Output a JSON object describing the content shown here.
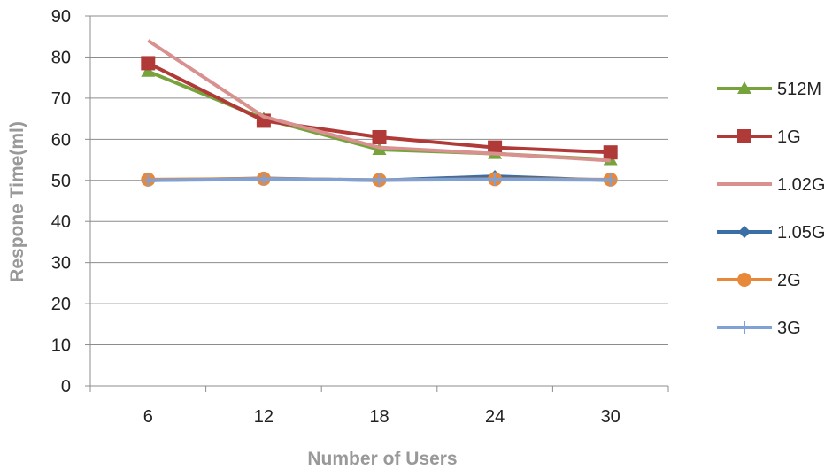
{
  "chart_data": {
    "type": "line",
    "xlabel": "Number of Users",
    "ylabel": "Respone Time(ml)",
    "categories": [
      "6",
      "12",
      "18",
      "24",
      "30"
    ],
    "ylim": [
      0,
      90
    ],
    "yticks": [
      "0",
      "10",
      "20",
      "30",
      "40",
      "50",
      "60",
      "70",
      "80",
      "90"
    ],
    "grid": "horizontal",
    "legend_position": "right",
    "series": [
      {
        "name": "512M",
        "values": [
          76.5,
          65,
          57.5,
          56.5,
          55
        ],
        "color": "#77a33c",
        "marker": "triangle"
      },
      {
        "name": "1G",
        "values": [
          78.5,
          64.5,
          60.5,
          58,
          56.8
        ],
        "color": "#b03a37",
        "marker": "square"
      },
      {
        "name": "1.02G",
        "values": [
          84,
          65.5,
          58,
          56.5,
          54.8
        ],
        "color": "#d9918f",
        "marker": "none"
      },
      {
        "name": "1.05G",
        "values": [
          50,
          50.5,
          50,
          51,
          50
        ],
        "color": "#3a6ea5",
        "marker": "diamond"
      },
      {
        "name": "2G",
        "values": [
          50.2,
          50.4,
          50.1,
          50.3,
          50.2
        ],
        "color": "#e8883a",
        "marker": "circle"
      },
      {
        "name": "3G",
        "values": [
          50,
          50.3,
          50.1,
          50.2,
          50.1
        ],
        "color": "#7fa1d6",
        "marker": "plus"
      }
    ]
  }
}
